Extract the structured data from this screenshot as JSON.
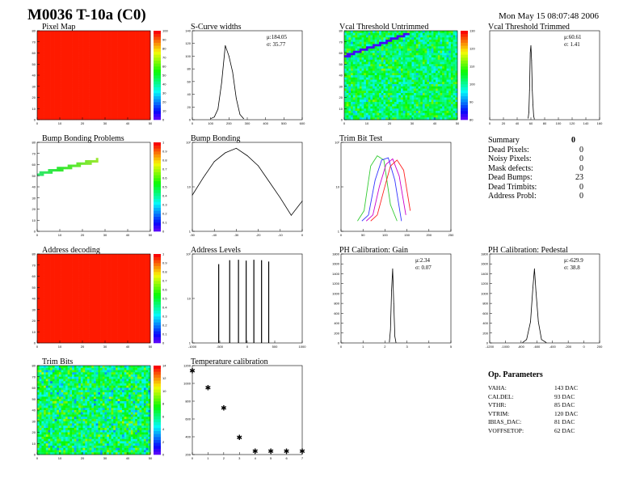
{
  "header": {
    "title": "M0036 T-10a (C0)",
    "date": "Mon May 15 08:07:48 2006"
  },
  "colors": {
    "heat_high": "#ff1a00",
    "line": "#000000",
    "trim_series": [
      "#33cc33",
      "#3333ff",
      "#cc00cc",
      "#ff2222"
    ]
  },
  "plots": {
    "pixel_map": {
      "title": "Pixel Map",
      "type": "heatmap",
      "xticks": [
        "0",
        "10",
        "20",
        "30",
        "40",
        "50"
      ],
      "yticks": [
        "0",
        "10",
        "20",
        "30",
        "40",
        "50",
        "60",
        "70",
        "80"
      ],
      "zticks": [
        "0",
        "10",
        "20",
        "30",
        "40",
        "50",
        "60",
        "70",
        "80",
        "90",
        "100"
      ],
      "fill": "uniform-max"
    },
    "scurve": {
      "title": "S-Curve widths",
      "type": "histogram",
      "stat": "μ:184.05\nσ: 35.77",
      "xticks": [
        "0",
        "100",
        "200",
        "300",
        "400",
        "500",
        "600"
      ],
      "yticks": [
        "0",
        "20",
        "40",
        "60",
        "80",
        "100",
        "120",
        "140"
      ]
    },
    "vcal_untrimmed": {
      "title": "Vcal Threshold Untrimmed",
      "type": "heatmap",
      "xticks": [
        "0",
        "10",
        "20",
        "30",
        "40",
        "50"
      ],
      "yticks": [
        "0",
        "10",
        "20",
        "30",
        "40",
        "50",
        "60",
        "70",
        "80"
      ],
      "zticks": [
        "80",
        "90",
        "100",
        "110",
        "120",
        "130"
      ]
    },
    "vcal_trimmed": {
      "title": "Vcal Threshold Trimmed",
      "type": "histogram",
      "stat": "μ:60.61\nσ: 1.41",
      "xticks": [
        "0",
        "20",
        "40",
        "60",
        "80",
        "100",
        "120",
        "140",
        "160"
      ]
    },
    "bump_problems": {
      "title": "Bump Bonding Problems",
      "type": "heatmap",
      "xticks": [
        "0",
        "10",
        "20",
        "30",
        "40",
        "50"
      ],
      "yticks": [
        "0",
        "10",
        "20",
        "30",
        "40",
        "50",
        "60",
        "70",
        "80"
      ],
      "zticks": [
        "0",
        "0.1",
        "0.2",
        "0.3",
        "0.4",
        "0.5",
        "0.6",
        "0.7",
        "0.8",
        "0.9",
        "1"
      ]
    },
    "bump_bonding": {
      "title": "Bump Bonding",
      "type": "histogram",
      "log": true,
      "xticks": [
        "-50",
        "-40",
        "-30",
        "-20",
        "-10",
        "0"
      ],
      "yticks": [
        "1",
        "10",
        "10²"
      ]
    },
    "trim_bit_test": {
      "title": "Trim Bit Test",
      "type": "histogram",
      "log": true,
      "xticks": [
        "0",
        "50",
        "100",
        "150",
        "200",
        "250"
      ],
      "yticks": [
        "1",
        "10",
        "10²"
      ]
    },
    "address_decoding": {
      "title": "Address decoding",
      "type": "heatmap",
      "xticks": [
        "0",
        "10",
        "20",
        "30",
        "40",
        "50"
      ],
      "yticks": [
        "0",
        "10",
        "20",
        "30",
        "40",
        "50",
        "60",
        "70",
        "80"
      ],
      "zticks": [
        "0",
        "0.1",
        "0.2",
        "0.3",
        "0.4",
        "0.5",
        "0.6",
        "0.7",
        "0.8",
        "0.9",
        "1"
      ],
      "fill": "uniform-max"
    },
    "address_levels": {
      "title": "Address Levels",
      "type": "histogram",
      "log": true,
      "xticks": [
        "-1000",
        "-500",
        "0",
        "500",
        "1000"
      ],
      "yticks": [
        "1",
        "10",
        "10²"
      ]
    },
    "ph_gain": {
      "title": "PH Calibration: Gain",
      "type": "histogram",
      "stat": "μ:2.34\nσ: 0.07",
      "xticks": [
        "0",
        "1",
        "2",
        "3",
        "4",
        "5"
      ],
      "yticks": [
        "0",
        "200",
        "400",
        "600",
        "800",
        "1000",
        "1200",
        "1400",
        "1600",
        "1800"
      ]
    },
    "ph_pedestal": {
      "title": "PH Calibration: Pedestal",
      "type": "histogram",
      "stat": "μ:-629.9\nσ: 38.8",
      "xticks": [
        "-1200",
        "-1000",
        "-800",
        "-600",
        "-400",
        "-200",
        "0",
        "200"
      ],
      "yticks": [
        "0",
        "200",
        "400",
        "600",
        "800",
        "1000",
        "1200",
        "1400",
        "1600",
        "1800"
      ]
    },
    "trim_bits": {
      "title": "Trim Bits",
      "type": "heatmap",
      "xticks": [
        "0",
        "10",
        "20",
        "30",
        "40",
        "50"
      ],
      "yticks": [
        "0",
        "10",
        "20",
        "30",
        "40",
        "50",
        "60",
        "70",
        "80"
      ],
      "zticks": [
        "0",
        "2",
        "4",
        "6",
        "8",
        "10",
        "12",
        "14"
      ]
    },
    "temperature": {
      "title": "Temperature calibration",
      "type": "scatter",
      "xticks": [
        "0",
        "1",
        "2",
        "3",
        "4",
        "5",
        "6",
        "7"
      ],
      "yticks": [
        "200",
        "400",
        "600",
        "800",
        "1000",
        "1200"
      ]
    }
  },
  "chart_data": [
    {
      "type": "heatmap",
      "title": "Pixel Map",
      "xlim": [
        0,
        52
      ],
      "ylim": [
        0,
        80
      ],
      "fill": "all cells at maximum"
    },
    {
      "type": "bar",
      "title": "S-Curve widths",
      "x": [
        100,
        120,
        140,
        160,
        180,
        200,
        220,
        240,
        260,
        280
      ],
      "values": [
        2,
        5,
        20,
        70,
        140,
        120,
        90,
        40,
        10,
        2
      ]
    },
    {
      "type": "heatmap",
      "title": "Vcal Threshold Untrimmed",
      "xlim": [
        0,
        52
      ],
      "ylim": [
        0,
        80
      ],
      "zlim": [
        80,
        135
      ]
    },
    {
      "type": "bar",
      "title": "Vcal Threshold Trimmed",
      "x": [
        56,
        57,
        58,
        59,
        60,
        61,
        62,
        63,
        64,
        65
      ],
      "values": [
        2,
        10,
        40,
        90,
        100,
        80,
        40,
        20,
        5,
        1
      ]
    },
    {
      "type": "heatmap",
      "title": "Bump Bonding Problems",
      "xlim": [
        0,
        52
      ],
      "ylim": [
        0,
        80
      ],
      "zlim": [
        0,
        1
      ]
    },
    {
      "type": "bar",
      "title": "Bump Bonding",
      "x": [
        -50,
        -45,
        -40,
        -35,
        -30,
        -25,
        -20,
        -15,
        -10,
        -5,
        0
      ],
      "values": [
        12,
        40,
        120,
        220,
        300,
        180,
        90,
        30,
        10,
        3,
        8
      ]
    },
    {
      "type": "line",
      "title": "Trim Bit Test",
      "series": [
        {
          "values": [
            1,
            3,
            80,
            160,
            120,
            5,
            1
          ]
        },
        {
          "values": [
            1,
            2,
            30,
            120,
            140,
            30,
            1
          ]
        },
        {
          "values": [
            1,
            2,
            20,
            90,
            130,
            40,
            2
          ]
        },
        {
          "values": [
            1,
            2,
            15,
            80,
            120,
            60,
            3
          ]
        }
      ]
    },
    {
      "type": "heatmap",
      "title": "Address decoding",
      "xlim": [
        0,
        52
      ],
      "ylim": [
        0,
        80
      ],
      "fill": "all cells at maximum"
    },
    {
      "type": "bar",
      "title": "Address Levels",
      "x": [
        -520,
        -320,
        -160,
        -20,
        120,
        260,
        390
      ],
      "values": [
        250,
        330,
        340,
        320,
        340,
        330,
        300
      ]
    },
    {
      "type": "bar",
      "title": "PH Calibration: Gain",
      "x": [
        2.2,
        2.25,
        2.3,
        2.35,
        2.4,
        2.45,
        2.5
      ],
      "values": [
        20,
        300,
        1200,
        1700,
        900,
        150,
        10
      ]
    },
    {
      "type": "bar",
      "title": "PH Calibration: Pedestal",
      "x": [
        -780,
        -730,
        -680,
        -650,
        -630,
        -610,
        -580,
        -540,
        -480
      ],
      "values": [
        10,
        80,
        500,
        1300,
        1750,
        1200,
        500,
        80,
        10
      ]
    },
    {
      "type": "heatmap",
      "title": "Trim Bits",
      "xlim": [
        0,
        52
      ],
      "ylim": [
        0,
        80
      ],
      "zlim": [
        0,
        15
      ]
    },
    {
      "type": "scatter",
      "title": "Temperature calibration",
      "x": [
        0,
        1,
        2,
        3,
        4,
        5,
        6,
        7
      ],
      "values": [
        1180,
        960,
        700,
        320,
        140,
        140,
        140,
        140
      ]
    }
  ],
  "summary": {
    "label": "Summary",
    "value": "0",
    "rows": [
      {
        "k": "Dead Pixels:",
        "v": "0"
      },
      {
        "k": "Noisy Pixels:",
        "v": "0"
      },
      {
        "k": "Mask defects:",
        "v": "0"
      },
      {
        "k": "Dead Bumps:",
        "v": "23"
      },
      {
        "k": "Dead Trimbits:",
        "v": "0"
      },
      {
        "k": "Address Probl:",
        "v": "0"
      }
    ]
  },
  "ops": {
    "title": "Op. Parameters",
    "rows": [
      {
        "k": "VAHA:",
        "v": "143 DAC"
      },
      {
        "k": "CALDEL:",
        "v": "93 DAC"
      },
      {
        "k": "VTHR:",
        "v": "85 DAC"
      },
      {
        "k": "VTRIM:",
        "v": "120 DAC"
      },
      {
        "k": "IBIAS_DAC:",
        "v": "81 DAC"
      },
      {
        "k": "VOFFSETOP:",
        "v": "62 DAC"
      }
    ]
  }
}
